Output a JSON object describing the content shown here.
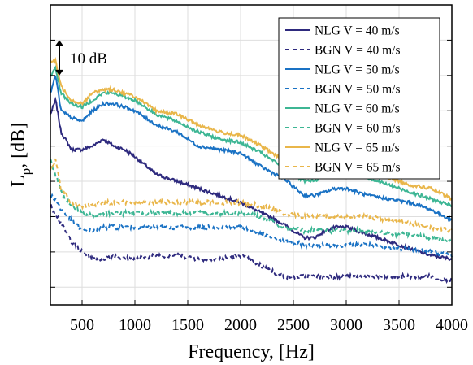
{
  "chart_data": {
    "type": "line",
    "title": "",
    "xlabel": "Frequency, [Hz]",
    "ylabel_main": "L",
    "ylabel_sub": "p",
    "ylabel_tail": ", [dB]",
    "xlim": [
      200,
      4000
    ],
    "ylim": [
      -5,
      80
    ],
    "grid": true,
    "legend_position": "top-right",
    "x_ticks": [
      500,
      1000,
      1500,
      2000,
      2500,
      3000,
      3500,
      4000
    ],
    "y_ticks": [
      0,
      10,
      20,
      30,
      40,
      50,
      60,
      70
    ],
    "scale_annotation": "10 dB",
    "x": [
      200,
      250,
      300,
      400,
      500,
      600,
      700,
      800,
      900,
      1000,
      1200,
      1400,
      1600,
      1800,
      2000,
      2200,
      2400,
      2600,
      2700,
      2800,
      2900,
      3000,
      3100,
      3200,
      3400,
      3600,
      3800,
      4000
    ],
    "series": [
      {
        "name": "NLG V = 40 m/s",
        "color": "#2e2a7e",
        "dashed": false,
        "values": [
          49,
          53,
          44,
          39,
          39,
          40,
          42,
          40,
          39,
          37,
          32,
          30,
          28,
          26,
          24,
          21,
          18,
          14,
          14,
          16,
          17,
          17,
          16,
          15,
          13,
          11,
          9,
          8
        ]
      },
      {
        "name": "BGN V = 40 m/s",
        "color": "#2e2a7e",
        "dashed": false,
        "dash": true,
        "values": [
          23,
          21,
          18,
          13,
          10,
          8,
          8,
          9,
          8,
          8,
          9,
          9,
          8,
          8,
          9,
          6,
          3,
          3,
          3,
          3,
          3,
          3,
          3,
          3,
          3,
          3,
          3,
          2
        ]
      },
      {
        "name": "NLG V = 50 m/s",
        "color": "#1a72c4",
        "dashed": false,
        "values": [
          55,
          60,
          50,
          48,
          47,
          50,
          52,
          52,
          51,
          50,
          46,
          44,
          40,
          39,
          38,
          34,
          31,
          26,
          26,
          27,
          28,
          28,
          27,
          26,
          25,
          24,
          22,
          19
        ]
      },
      {
        "name": "BGN V = 50 m/s",
        "color": "#1a72c4",
        "dashed": false,
        "dash": true,
        "values": [
          26,
          25,
          22,
          19,
          16,
          16,
          17,
          17,
          17,
          17,
          17,
          17,
          17,
          17,
          17,
          15,
          13,
          12,
          12,
          12,
          12,
          12,
          12,
          12,
          11,
          11,
          10,
          9
        ]
      },
      {
        "name": "NLG V = 60 m/s",
        "color": "#3db694",
        "dashed": false,
        "values": [
          60,
          62,
          55,
          52,
          51,
          53,
          55,
          55,
          54,
          53,
          49,
          47,
          44,
          42,
          41,
          38,
          34,
          30,
          30,
          32,
          33,
          33,
          32,
          31,
          29,
          27,
          25,
          23
        ]
      },
      {
        "name": "BGN V = 60 m/s",
        "color": "#3db694",
        "dashed": false,
        "dash": true,
        "values": [
          36,
          32,
          27,
          23,
          21,
          20,
          21,
          21,
          21,
          21,
          21,
          21,
          21,
          21,
          21,
          20,
          17,
          16,
          16,
          16,
          16,
          16,
          16,
          16,
          15,
          15,
          14,
          13
        ]
      },
      {
        "name": "NLG V = 65 m/s",
        "color": "#e9b64a",
        "dashed": false,
        "values": [
          64,
          64,
          57,
          53,
          52,
          55,
          56,
          56,
          55,
          54,
          50,
          49,
          46,
          44,
          43,
          40,
          36,
          32,
          33,
          34,
          35,
          35,
          34,
          33,
          31,
          29,
          28,
          25
        ]
      },
      {
        "name": "BGN V = 65 m/s",
        "color": "#e9b64a",
        "dashed": false,
        "dash": true,
        "values": [
          33,
          36,
          28,
          24,
          23,
          23,
          24,
          24,
          24,
          24,
          24,
          24,
          24,
          24,
          24,
          23,
          21,
          20,
          20,
          20,
          20,
          20,
          20,
          20,
          19,
          18,
          17,
          16
        ]
      }
    ]
  }
}
